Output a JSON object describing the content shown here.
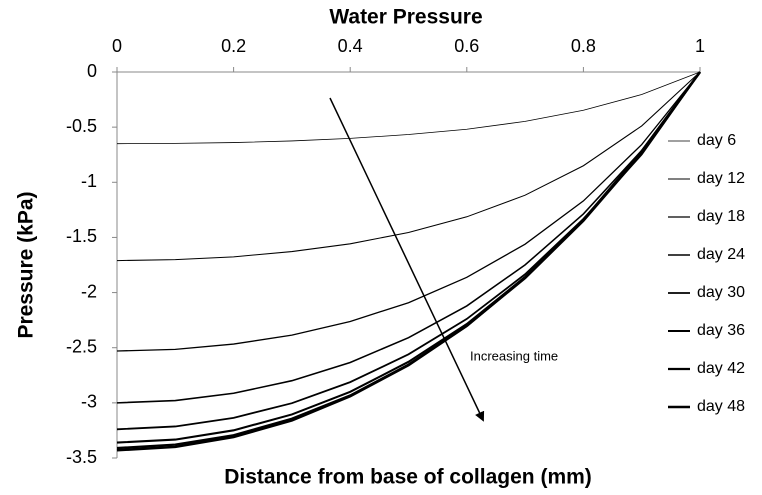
{
  "chart_data": {
    "type": "line",
    "title": "Water Pressure",
    "x_label": "Distance from base of collagen (mm)",
    "y_label": "Pressure (kPa)",
    "annotation": "Increasing time",
    "x": [
      0,
      0.1,
      0.2,
      0.3,
      0.4,
      0.5,
      0.6,
      0.7,
      0.8,
      0.9,
      1
    ],
    "xlim": [
      0,
      1
    ],
    "xticks": [
      0,
      0.2,
      0.4,
      0.6,
      0.8,
      1
    ],
    "ylim": [
      -3.5,
      0
    ],
    "yticks": [
      0,
      -0.5,
      -1,
      -1.5,
      -2,
      -2.5,
      -3,
      -3.5
    ],
    "legend": "right",
    "series": [
      {
        "name": "day 6",
        "color": "#000000",
        "values": [
          -0.65,
          -0.647,
          -0.64,
          -0.625,
          -0.602,
          -0.567,
          -0.519,
          -0.448,
          -0.347,
          -0.204,
          0
        ]
      },
      {
        "name": "day 12",
        "color": "#000000",
        "values": [
          -1.71,
          -1.701,
          -1.676,
          -1.628,
          -1.558,
          -1.455,
          -1.313,
          -1.117,
          -0.85,
          -0.489,
          0
        ]
      },
      {
        "name": "day 18",
        "color": "#000000",
        "values": [
          -2.53,
          -2.515,
          -2.467,
          -2.386,
          -2.262,
          -2.092,
          -1.862,
          -1.561,
          -1.169,
          -0.658,
          0
        ]
      },
      {
        "name": "day 24",
        "color": "#000000",
        "values": [
          -3.0,
          -2.979,
          -2.913,
          -2.799,
          -2.634,
          -2.409,
          -2.121,
          -1.749,
          -1.287,
          -0.711,
          0
        ]
      },
      {
        "name": "day 30",
        "color": "#000000",
        "values": [
          -3.24,
          -3.214,
          -3.136,
          -3.003,
          -2.812,
          -2.56,
          -2.239,
          -1.834,
          -1.332,
          -0.748,
          0
        ]
      },
      {
        "name": "day 36",
        "color": "#000000",
        "values": [
          -3.36,
          -3.333,
          -3.249,
          -3.105,
          -2.9,
          -2.628,
          -2.285,
          -1.858,
          -1.347,
          -0.729,
          0
        ]
      },
      {
        "name": "day 42",
        "color": "#000000",
        "values": [
          -3.41,
          -3.379,
          -3.294,
          -3.144,
          -2.933,
          -2.653,
          -2.302,
          -1.869,
          -1.35,
          -0.737,
          0
        ]
      },
      {
        "name": "day 48",
        "color": "#000000",
        "values": [
          -3.43,
          -3.399,
          -3.31,
          -3.159,
          -2.94,
          -2.658,
          -2.302,
          -1.862,
          -1.341,
          -0.72,
          0
        ]
      }
    ]
  }
}
